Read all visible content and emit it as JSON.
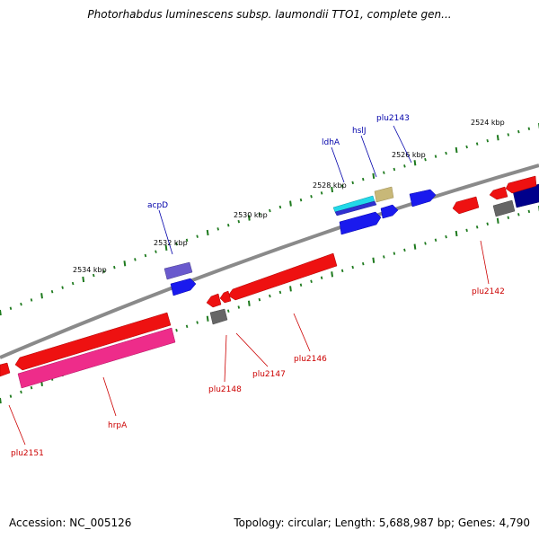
{
  "title": "Photorhabdus luminescens subsp. laumondii TTO1, complete gen...",
  "footer": {
    "accession": "Accession: NC_005126",
    "summary": "Topology: circular; Length: 5,688,987 bp; Genes: 4,790"
  },
  "colors": {
    "backbone": "#8a8a8a",
    "tick": "#1e7a1e",
    "forward_label": "#0000aa",
    "reverse_label": "#cc0000"
  },
  "scale_labels": [
    "2524 kbp",
    "2526 kbp",
    "2528 kbp",
    "2530 kbp",
    "2532 kbp",
    "2534 kbp"
  ],
  "gene_labels": {
    "forward": [
      "plu2143",
      "hslJ",
      "ldhA",
      "acpD"
    ],
    "reverse": [
      "plu2142",
      "plu2146",
      "plu2147",
      "plu2148",
      "hrpA",
      "plu2151"
    ]
  }
}
